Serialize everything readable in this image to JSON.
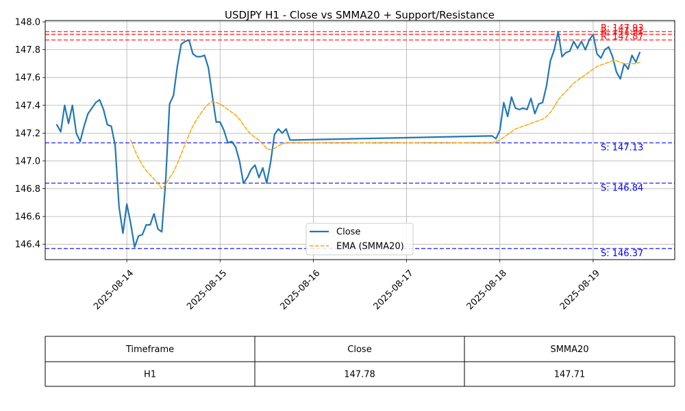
{
  "chart_data": {
    "type": "line",
    "title": "USDJPY H1 - Close vs SMMA20 + Support/Resistance",
    "xlabel": "",
    "ylabel": "",
    "x_axis_type": "date",
    "x_ticks": [
      "2025-08-14",
      "2025-08-15",
      "2025-08-16",
      "2025-08-17",
      "2025-08-18",
      "2025-08-19"
    ],
    "xlim": [
      "2025-08-13 03:00",
      "2025-08-19 21:00"
    ],
    "y_ticks": [
      "146.4",
      "146.6",
      "146.8",
      "147.0",
      "147.2",
      "147.4",
      "147.6",
      "147.8",
      "148.0"
    ],
    "ylim": [
      146.29,
      148.01
    ],
    "grid": true,
    "legend_position": "lower center",
    "series": [
      {
        "name": "Close",
        "color": "#1f77b4",
        "style": "solid",
        "points": [
          [
            "2025-08-13 06:00",
            147.26
          ],
          [
            "2025-08-13 07:00",
            147.21
          ],
          [
            "2025-08-13 08:00",
            147.4
          ],
          [
            "2025-08-13 09:00",
            147.27
          ],
          [
            "2025-08-13 10:00",
            147.4
          ],
          [
            "2025-08-13 11:00",
            147.2
          ],
          [
            "2025-08-13 12:00",
            147.14
          ],
          [
            "2025-08-13 13:00",
            147.25
          ],
          [
            "2025-08-13 14:00",
            147.34
          ],
          [
            "2025-08-13 15:00",
            147.38
          ],
          [
            "2025-08-13 16:00",
            147.42
          ],
          [
            "2025-08-13 17:00",
            147.44
          ],
          [
            "2025-08-13 18:00",
            147.37
          ],
          [
            "2025-08-13 19:00",
            147.26
          ],
          [
            "2025-08-13 20:00",
            147.25
          ],
          [
            "2025-08-13 21:00",
            147.11
          ],
          [
            "2025-08-13 22:00",
            146.67
          ],
          [
            "2025-08-13 23:00",
            146.48
          ],
          [
            "2025-08-14 00:00",
            146.69
          ],
          [
            "2025-08-14 01:00",
            146.55
          ],
          [
            "2025-08-14 02:00",
            146.38
          ],
          [
            "2025-08-14 03:00",
            146.46
          ],
          [
            "2025-08-14 04:00",
            146.47
          ],
          [
            "2025-08-14 05:00",
            146.54
          ],
          [
            "2025-08-14 06:00",
            146.54
          ],
          [
            "2025-08-14 07:00",
            146.62
          ],
          [
            "2025-08-14 08:00",
            146.51
          ],
          [
            "2025-08-14 09:00",
            146.49
          ],
          [
            "2025-08-14 10:00",
            146.86
          ],
          [
            "2025-08-14 11:00",
            147.41
          ],
          [
            "2025-08-14 12:00",
            147.47
          ],
          [
            "2025-08-14 13:00",
            147.68
          ],
          [
            "2025-08-14 14:00",
            147.84
          ],
          [
            "2025-08-14 15:00",
            147.86
          ],
          [
            "2025-08-14 16:00",
            147.87
          ],
          [
            "2025-08-14 17:00",
            147.77
          ],
          [
            "2025-08-14 18:00",
            147.75
          ],
          [
            "2025-08-14 19:00",
            147.75
          ],
          [
            "2025-08-14 20:00",
            147.76
          ],
          [
            "2025-08-14 21:00",
            147.67
          ],
          [
            "2025-08-14 22:00",
            147.47
          ],
          [
            "2025-08-14 23:00",
            147.28
          ],
          [
            "2025-08-15 00:00",
            147.28
          ],
          [
            "2025-08-15 01:00",
            147.22
          ],
          [
            "2025-08-15 02:00",
            147.13
          ],
          [
            "2025-08-15 03:00",
            147.14
          ],
          [
            "2025-08-15 04:00",
            147.1
          ],
          [
            "2025-08-15 05:00",
            147.0
          ],
          [
            "2025-08-15 06:00",
            146.84
          ],
          [
            "2025-08-15 07:00",
            146.88
          ],
          [
            "2025-08-15 08:00",
            146.94
          ],
          [
            "2025-08-15 09:00",
            146.97
          ],
          [
            "2025-08-15 10:00",
            146.88
          ],
          [
            "2025-08-15 11:00",
            146.95
          ],
          [
            "2025-08-15 12:00",
            146.84
          ],
          [
            "2025-08-15 13:00",
            146.99
          ],
          [
            "2025-08-15 14:00",
            147.19
          ],
          [
            "2025-08-15 15:00",
            147.23
          ],
          [
            "2025-08-15 16:00",
            147.2
          ],
          [
            "2025-08-15 17:00",
            147.23
          ],
          [
            "2025-08-15 18:00",
            147.15
          ],
          [
            "2025-08-17 22:00",
            147.18
          ],
          [
            "2025-08-17 23:00",
            147.16
          ],
          [
            "2025-08-18 00:00",
            147.22
          ],
          [
            "2025-08-18 01:00",
            147.42
          ],
          [
            "2025-08-18 02:00",
            147.32
          ],
          [
            "2025-08-18 03:00",
            147.46
          ],
          [
            "2025-08-18 04:00",
            147.38
          ],
          [
            "2025-08-18 05:00",
            147.37
          ],
          [
            "2025-08-18 06:00",
            147.38
          ],
          [
            "2025-08-18 07:00",
            147.37
          ],
          [
            "2025-08-18 08:00",
            147.45
          ],
          [
            "2025-08-18 09:00",
            147.34
          ],
          [
            "2025-08-18 10:00",
            147.41
          ],
          [
            "2025-08-18 11:00",
            147.42
          ],
          [
            "2025-08-18 12:00",
            147.54
          ],
          [
            "2025-08-18 13:00",
            147.72
          ],
          [
            "2025-08-18 14:00",
            147.8
          ],
          [
            "2025-08-18 15:00",
            147.93
          ],
          [
            "2025-08-18 16:00",
            147.75
          ],
          [
            "2025-08-18 17:00",
            147.78
          ],
          [
            "2025-08-18 18:00",
            147.79
          ],
          [
            "2025-08-18 19:00",
            147.86
          ],
          [
            "2025-08-18 20:00",
            147.81
          ],
          [
            "2025-08-18 21:00",
            147.86
          ],
          [
            "2025-08-18 22:00",
            147.8
          ],
          [
            "2025-08-18 23:00",
            147.87
          ],
          [
            "2025-08-19 00:00",
            147.91
          ],
          [
            "2025-08-19 01:00",
            147.77
          ],
          [
            "2025-08-19 02:00",
            147.74
          ],
          [
            "2025-08-19 03:00",
            147.8
          ],
          [
            "2025-08-19 04:00",
            147.82
          ],
          [
            "2025-08-19 05:00",
            147.75
          ],
          [
            "2025-08-19 06:00",
            147.64
          ],
          [
            "2025-08-19 07:00",
            147.59
          ],
          [
            "2025-08-19 08:00",
            147.7
          ],
          [
            "2025-08-19 09:00",
            147.66
          ],
          [
            "2025-08-19 10:00",
            147.76
          ],
          [
            "2025-08-19 11:00",
            147.71
          ],
          [
            "2025-08-19 12:00",
            147.78
          ]
        ]
      },
      {
        "name": "EMA (SMMA20)",
        "color": "#ffa500",
        "style": "dashed",
        "points": [
          [
            "2025-08-14 01:00",
            147.15
          ],
          [
            "2025-08-14 02:00",
            147.08
          ],
          [
            "2025-08-14 03:00",
            147.02
          ],
          [
            "2025-08-14 04:00",
            146.97
          ],
          [
            "2025-08-14 05:00",
            146.93
          ],
          [
            "2025-08-14 06:00",
            146.9
          ],
          [
            "2025-08-14 07:00",
            146.87
          ],
          [
            "2025-08-14 08:00",
            146.84
          ],
          [
            "2025-08-14 09:00",
            146.8
          ],
          [
            "2025-08-14 10:00",
            146.83
          ],
          [
            "2025-08-14 11:00",
            146.88
          ],
          [
            "2025-08-14 12:00",
            146.92
          ],
          [
            "2025-08-14 13:00",
            146.98
          ],
          [
            "2025-08-14 14:00",
            147.05
          ],
          [
            "2025-08-14 15:00",
            147.12
          ],
          [
            "2025-08-14 16:00",
            147.19
          ],
          [
            "2025-08-14 17:00",
            147.25
          ],
          [
            "2025-08-14 18:00",
            147.3
          ],
          [
            "2025-08-14 19:00",
            147.34
          ],
          [
            "2025-08-14 20:00",
            147.38
          ],
          [
            "2025-08-14 21:00",
            147.41
          ],
          [
            "2025-08-14 22:00",
            147.43
          ],
          [
            "2025-08-14 23:00",
            147.42
          ],
          [
            "2025-08-15 00:00",
            147.41
          ],
          [
            "2025-08-15 01:00",
            147.39
          ],
          [
            "2025-08-15 02:00",
            147.37
          ],
          [
            "2025-08-15 03:00",
            147.35
          ],
          [
            "2025-08-15 04:00",
            147.33
          ],
          [
            "2025-08-15 05:00",
            147.3
          ],
          [
            "2025-08-15 06:00",
            147.26
          ],
          [
            "2025-08-15 07:00",
            147.22
          ],
          [
            "2025-08-15 08:00",
            147.19
          ],
          [
            "2025-08-15 09:00",
            147.17
          ],
          [
            "2025-08-15 10:00",
            147.15
          ],
          [
            "2025-08-15 11:00",
            147.12
          ],
          [
            "2025-08-15 12:00",
            147.09
          ],
          [
            "2025-08-15 13:00",
            147.08
          ],
          [
            "2025-08-15 14:00",
            147.09
          ],
          [
            "2025-08-15 15:00",
            147.11
          ],
          [
            "2025-08-15 16:00",
            147.12
          ],
          [
            "2025-08-15 17:00",
            147.13
          ],
          [
            "2025-08-15 18:00",
            147.13
          ],
          [
            "2025-08-17 22:00",
            147.13
          ],
          [
            "2025-08-17 23:00",
            147.14
          ],
          [
            "2025-08-18 00:00",
            147.15
          ],
          [
            "2025-08-18 01:00",
            147.17
          ],
          [
            "2025-08-18 02:00",
            147.19
          ],
          [
            "2025-08-18 03:00",
            147.21
          ],
          [
            "2025-08-18 04:00",
            147.23
          ],
          [
            "2025-08-18 05:00",
            147.24
          ],
          [
            "2025-08-18 06:00",
            147.25
          ],
          [
            "2025-08-18 07:00",
            147.26
          ],
          [
            "2025-08-18 08:00",
            147.27
          ],
          [
            "2025-08-18 09:00",
            147.28
          ],
          [
            "2025-08-18 10:00",
            147.29
          ],
          [
            "2025-08-18 11:00",
            147.3
          ],
          [
            "2025-08-18 12:00",
            147.32
          ],
          [
            "2025-08-18 13:00",
            147.35
          ],
          [
            "2025-08-18 14:00",
            147.39
          ],
          [
            "2025-08-18 15:00",
            147.44
          ],
          [
            "2025-08-18 16:00",
            147.47
          ],
          [
            "2025-08-18 17:00",
            147.5
          ],
          [
            "2025-08-18 18:00",
            147.53
          ],
          [
            "2025-08-18 19:00",
            147.56
          ],
          [
            "2025-08-18 20:00",
            147.58
          ],
          [
            "2025-08-18 21:00",
            147.6
          ],
          [
            "2025-08-18 22:00",
            147.62
          ],
          [
            "2025-08-18 23:00",
            147.64
          ],
          [
            "2025-08-19 00:00",
            147.66
          ],
          [
            "2025-08-19 01:00",
            147.68
          ],
          [
            "2025-08-19 02:00",
            147.69
          ],
          [
            "2025-08-19 03:00",
            147.7
          ],
          [
            "2025-08-19 04:00",
            147.71
          ],
          [
            "2025-08-19 05:00",
            147.72
          ],
          [
            "2025-08-19 06:00",
            147.72
          ],
          [
            "2025-08-19 07:00",
            147.71
          ],
          [
            "2025-08-19 08:00",
            147.7
          ],
          [
            "2025-08-19 09:00",
            147.7
          ],
          [
            "2025-08-19 10:00",
            147.7
          ],
          [
            "2025-08-19 11:00",
            147.7
          ],
          [
            "2025-08-19 12:00",
            147.71
          ]
        ]
      }
    ],
    "resistance_lines": [
      {
        "value": 147.93,
        "label": "R: 147.93",
        "color": "#ff0000"
      },
      {
        "value": 147.91,
        "label": "R: 147.91",
        "color": "#ff0000"
      },
      {
        "value": 147.87,
        "label": "R: 147.87",
        "color": "#ff0000"
      }
    ],
    "support_lines": [
      {
        "value": 147.13,
        "label": "S: 147.13",
        "color": "#0000ff"
      },
      {
        "value": 146.84,
        "label": "S: 146.84",
        "color": "#0000ff"
      },
      {
        "value": 146.37,
        "label": "S: 146.37",
        "color": "#0000ff"
      }
    ]
  },
  "table": {
    "headers": [
      "Timeframe",
      "Close",
      "SMMA20"
    ],
    "rows": [
      [
        "H1",
        "147.78",
        "147.71"
      ]
    ]
  }
}
